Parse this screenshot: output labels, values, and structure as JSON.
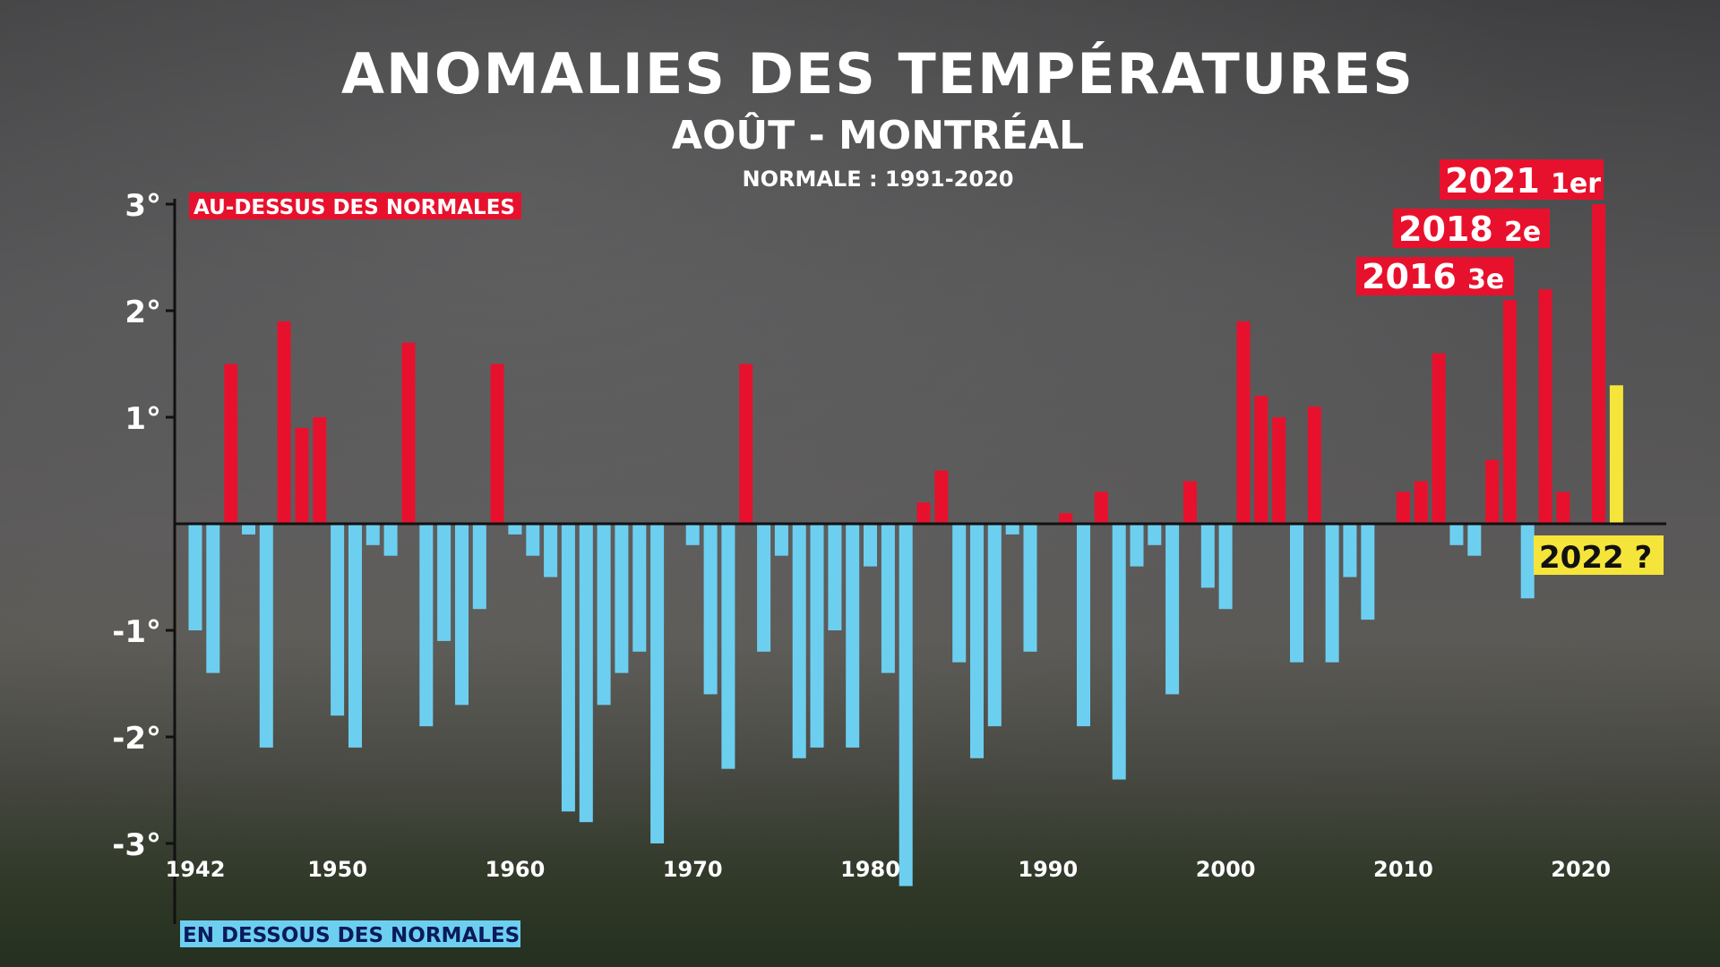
{
  "title": "ANOMALIES DES TEMPÉRATURES",
  "subtitle": "AOÛT - MONTRÉAL",
  "normal_label": "NORMALE : 1991-2020",
  "above_label": "AU-DESSUS DES NORMALES",
  "below_label": "EN DESSOUS DES NORMALES",
  "colors": {
    "above": "#e8112d",
    "below": "#6dcff0",
    "current": "#f5e43a"
  },
  "chart_data": {
    "type": "bar",
    "title": "ANOMALIES DES TEMPÉRATURES",
    "subtitle": "AOÛT - MONTRÉAL",
    "ylim": [
      -3.4,
      3.2
    ],
    "y_ticks": [
      {
        "value": 3,
        "label": "3°"
      },
      {
        "value": 2,
        "label": "2°"
      },
      {
        "value": 1,
        "label": "1°"
      },
      {
        "value": -1,
        "label": "-1°"
      },
      {
        "value": -2,
        "label": "-2°"
      },
      {
        "value": -3,
        "label": "-3°"
      }
    ],
    "x_ticks": [
      1942,
      1950,
      1960,
      1970,
      1980,
      1990,
      2000,
      2010,
      2020
    ],
    "years": [
      1942,
      1943,
      1944,
      1945,
      1946,
      1947,
      1948,
      1949,
      1950,
      1951,
      1952,
      1953,
      1954,
      1955,
      1956,
      1957,
      1958,
      1959,
      1960,
      1961,
      1962,
      1963,
      1964,
      1965,
      1966,
      1967,
      1968,
      1969,
      1970,
      1971,
      1972,
      1973,
      1974,
      1975,
      1976,
      1977,
      1978,
      1979,
      1980,
      1981,
      1982,
      1983,
      1984,
      1985,
      1986,
      1987,
      1988,
      1989,
      1990,
      1991,
      1992,
      1993,
      1994,
      1995,
      1996,
      1997,
      1998,
      1999,
      2000,
      2001,
      2002,
      2003,
      2004,
      2005,
      2006,
      2007,
      2008,
      2009,
      2010,
      2011,
      2012,
      2013,
      2014,
      2015,
      2016,
      2017,
      2018,
      2019,
      2020,
      2021,
      2022
    ],
    "values": [
      -1.0,
      -1.4,
      1.5,
      -0.1,
      -2.1,
      1.9,
      0.9,
      1.0,
      -1.8,
      -2.1,
      -0.2,
      -0.3,
      1.7,
      -1.9,
      -1.1,
      -1.7,
      -0.8,
      1.5,
      -0.1,
      -0.3,
      -0.5,
      -2.7,
      -2.8,
      -1.7,
      -1.4,
      -1.2,
      -3.0,
      0.0,
      -0.2,
      -1.6,
      -2.3,
      1.5,
      -1.2,
      -0.3,
      -2.2,
      -2.1,
      -1.0,
      -2.1,
      -0.4,
      -1.4,
      -3.4,
      0.2,
      0.5,
      -1.3,
      -2.2,
      -1.9,
      -0.1,
      -1.2,
      0.0,
      0.1,
      -1.9,
      0.3,
      -2.4,
      -0.4,
      -0.2,
      -1.6,
      0.4,
      -0.6,
      -0.8,
      1.9,
      1.2,
      1.0,
      -1.3,
      1.1,
      -1.3,
      -0.5,
      -0.9,
      0.0,
      0.3,
      0.4,
      1.6,
      -0.2,
      -0.3,
      0.6,
      2.1,
      -0.7,
      2.2,
      0.3,
      0.0,
      3.0,
      1.3
    ],
    "current_year": 2022,
    "annotations": [
      {
        "year": 2021,
        "label": "2021",
        "rank": "1er"
      },
      {
        "year": 2018,
        "label": "2018",
        "rank": "2e"
      },
      {
        "year": 2016,
        "label": "2016",
        "rank": "3e"
      }
    ],
    "current_label": "2022 ?"
  }
}
